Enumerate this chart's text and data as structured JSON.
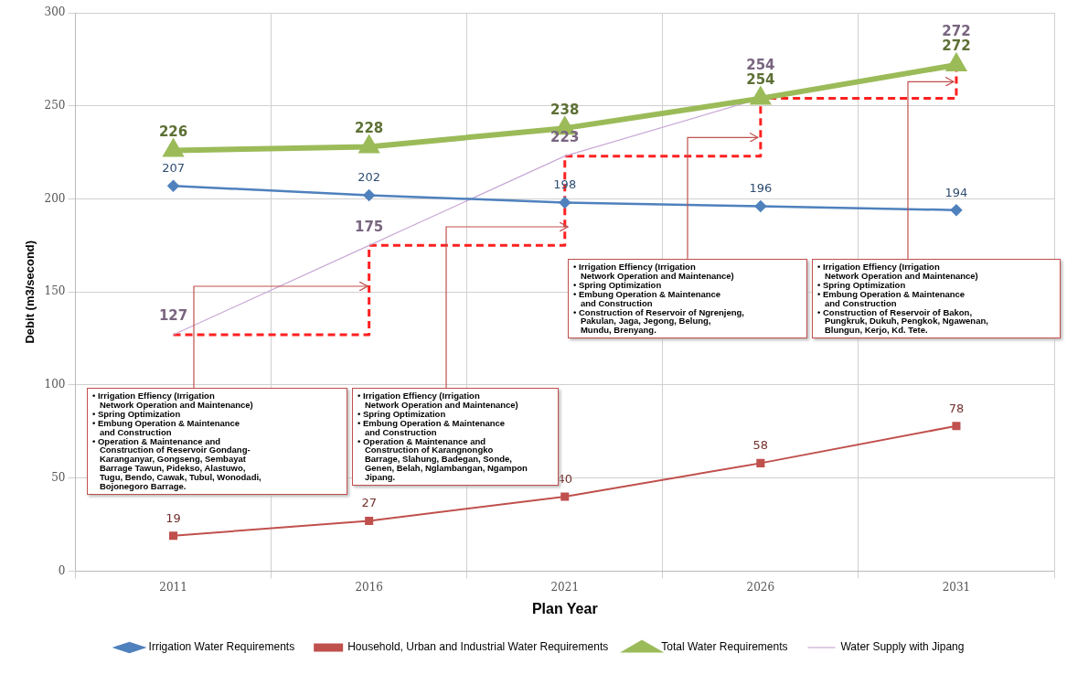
{
  "chart_data": {
    "type": "line",
    "xlabel": "Plan Year",
    "ylabel": "Debit (m3/second)",
    "categories": [
      "2011",
      "2016",
      "2021",
      "2026",
      "2031"
    ],
    "ylim": [
      0,
      300
    ],
    "yticks": [
      0,
      50,
      100,
      150,
      200,
      250,
      300
    ],
    "grid": true,
    "legend": "bottom",
    "series": [
      {
        "name": "Irrigation Water Requirements",
        "color": "#4f81bd",
        "marker": "diamond",
        "values": [
          207,
          202,
          198,
          196,
          194
        ],
        "value_labels": [
          "207",
          "202",
          "198",
          "196",
          "194"
        ]
      },
      {
        "name": "Household, Urban and Industrial Water Requirements",
        "color": "#c0504d",
        "marker": "square",
        "values": [
          19,
          27,
          40,
          58,
          78
        ],
        "value_labels": [
          "19",
          "27",
          "40",
          "58",
          "78"
        ]
      },
      {
        "name": "Total Water Requirements",
        "color": "#9bbb59",
        "marker": "triangle",
        "values": [
          226,
          228,
          238,
          254,
          272
        ],
        "value_labels": [
          "226",
          "228",
          "238",
          "254",
          "272"
        ]
      },
      {
        "name": "Water Supply with Jipang",
        "color": "#c9a9d6",
        "marker": "none",
        "values": [
          127,
          175,
          223,
          254,
          272
        ],
        "value_labels": [
          "127",
          "175",
          "223",
          "254",
          "272"
        ]
      },
      {
        "type": "step",
        "color": "#ff2020",
        "marker": "none",
        "line_style": "dashed",
        "values": [
          127,
          175,
          223,
          254,
          272
        ]
      }
    ],
    "annotations": [
      "• Irrigation Effiency (Irrigation\n   Network Operation and Maintenance)\n• Spring Optimization\n• Embung Operation & Maintenance\n   and Construction\n• Operation & Maintenance and\n   Construction of Reservoir Gondang-\n   Karanganyar, Gongseng, Sembayat\n   Barrage Tawun, Pidekso, Alastuwo,\n   Tugu, Bendo, Cawak, Tubul, Wonodadi,\n   Bojonegoro Barrage.",
      "• Irrigation Effiency (Irrigation\n   Network Operation and Maintenance)\n• Spring Optimization\n• Embung Operation & Maintenance\n   and Construction\n• Operation & Maintenance and\n   Construction of Karangnongko\n   Barrage, Slahung, Badegan, Sonde,\n   Genen, Belah, Nglambangan, Ngampon\n   Jipang.",
      {
        "text": "• Irrigation Effiency (Irrigation\n   Network Operation and Maintenance)\n• Spring Optimization\n• Embung Operation & Maintenance\n   and Construction\n• Construction of Reservoir of Ngrenjeng,\n   Pakulan, Jaga, Jegong, Belung,\n   Mundu, Brenyang.",
        "x": "2026",
        "y": 233
      },
      {
        "text": "• Irrigation Effiency (Irrigation\n   Network Operation and Maintenance)\n• Spring Optimization\n• Embung Operation & Maintenance\n   and Construction\n• Construction of Reservoir of Bakon,\n   Pungkruk, Dukuh, Pengkok, Ngawenan,\n   Blungun, Kerjo, Kd. Tete.",
        "x": "2031",
        "y": 263
      }
    ]
  }
}
